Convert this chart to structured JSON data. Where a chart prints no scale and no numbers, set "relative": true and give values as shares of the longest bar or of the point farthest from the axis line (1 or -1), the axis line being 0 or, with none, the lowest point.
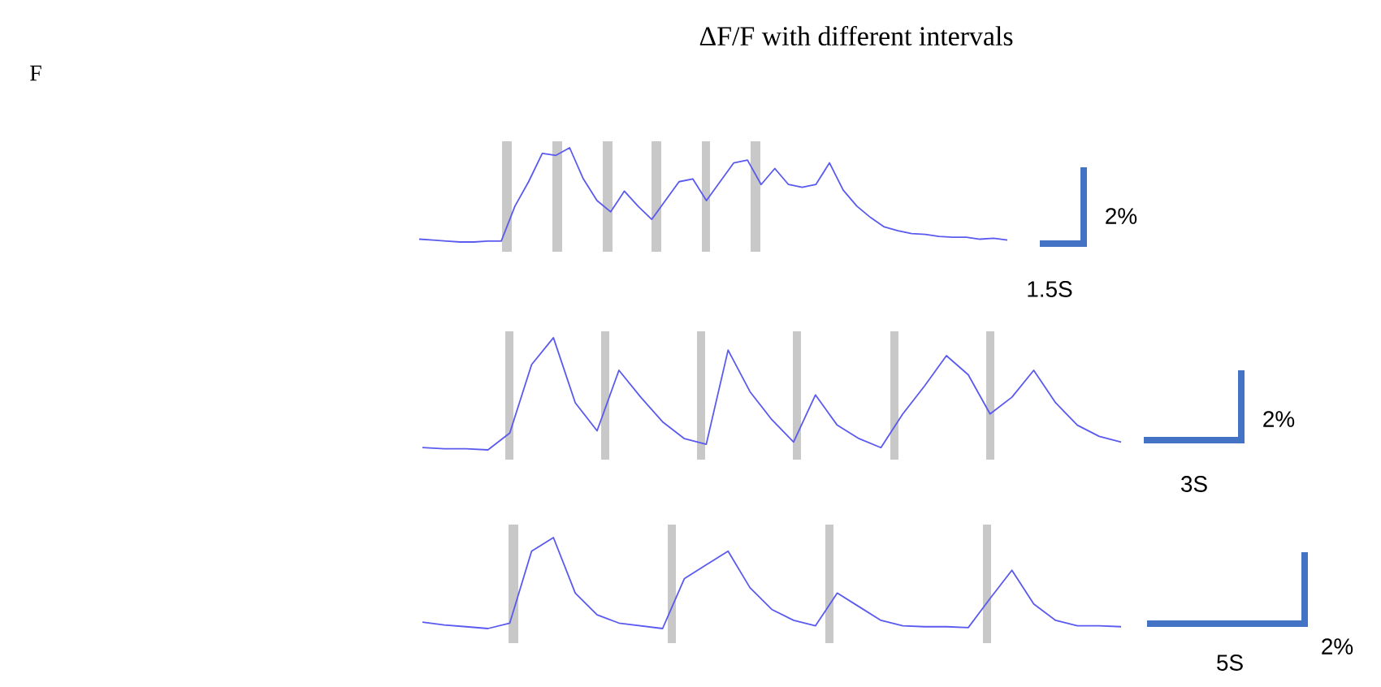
{
  "chart_data": [
    {
      "type": "line",
      "title": "ΔF/F with different intervals",
      "relative": true,
      "color": "#5a5af0",
      "categories": [
        null,
        null,
        null,
        null,
        null,
        null,
        null,
        null,
        null,
        null,
        null,
        null,
        null,
        null,
        null,
        null,
        null,
        null,
        null,
        null,
        null,
        null,
        null,
        null,
        null,
        null,
        null,
        null,
        null,
        null,
        null,
        null,
        null,
        null,
        null,
        null,
        null,
        null,
        null,
        null,
        null,
        null,
        null,
        null
      ],
      "values": [
        0.03,
        0.02,
        0.01,
        0,
        0,
        0.01,
        0.01,
        0.38,
        0.64,
        0.94,
        0.92,
        1,
        0.67,
        0.44,
        0.32,
        0.54,
        0.38,
        0.24,
        0.44,
        0.64,
        0.67,
        0.44,
        0.64,
        0.84,
        0.87,
        0.61,
        0.78,
        0.61,
        0.58,
        0.61,
        0.84,
        0.55,
        0.38,
        0.26,
        0.16,
        0.12,
        0.09,
        0.08,
        0.06,
        0.05,
        0.05,
        0.03,
        0.04,
        0.02
      ],
      "annotations": [
        "F",
        "2%",
        "1.5S"
      ]
    },
    {
      "type": "line",
      "relative": true,
      "color": "#5a5af0",
      "categories": [
        null,
        null,
        null,
        null,
        null,
        null,
        null,
        null,
        null,
        null,
        null,
        null,
        null,
        null,
        null,
        null,
        null,
        null,
        null,
        null,
        null,
        null,
        null,
        null,
        null,
        null,
        null,
        null,
        null,
        null,
        null,
        null,
        null
      ],
      "values": [
        0.02,
        0.01,
        0.01,
        0,
        0.15,
        0.76,
        1,
        0.42,
        0.17,
        0.71,
        0.47,
        0.25,
        0.1,
        0.05,
        0.89,
        0.52,
        0.27,
        0.07,
        0.49,
        0.22,
        0.1,
        0.02,
        0.32,
        0.57,
        0.84,
        0.67,
        0.32,
        0.47,
        0.71,
        0.42,
        0.22,
        0.12,
        0.07
      ],
      "annotations": [
        "2%",
        "3S"
      ]
    },
    {
      "type": "line",
      "relative": true,
      "color": "#5a5af0",
      "categories": [
        null,
        null,
        null,
        null,
        null,
        null,
        null,
        null,
        null,
        null,
        null,
        null,
        null,
        null,
        null,
        null,
        null,
        null,
        null,
        null,
        null,
        null,
        null,
        null,
        null,
        null,
        null,
        null,
        null,
        null,
        null,
        null,
        null
      ],
      "values": [
        0.07,
        0.04,
        0.02,
        0,
        0.06,
        0.85,
        1,
        0.39,
        0.15,
        0.06,
        0.03,
        0,
        0.55,
        0.7,
        0.85,
        0.45,
        0.21,
        0.09,
        0.03,
        0.39,
        0.24,
        0.09,
        0.03,
        0.02,
        0.02,
        0.01,
        0.33,
        0.64,
        0.27,
        0.09,
        0.03,
        0.03,
        0.02
      ],
      "annotations": [
        "2%",
        "5S"
      ]
    }
  ]
}
